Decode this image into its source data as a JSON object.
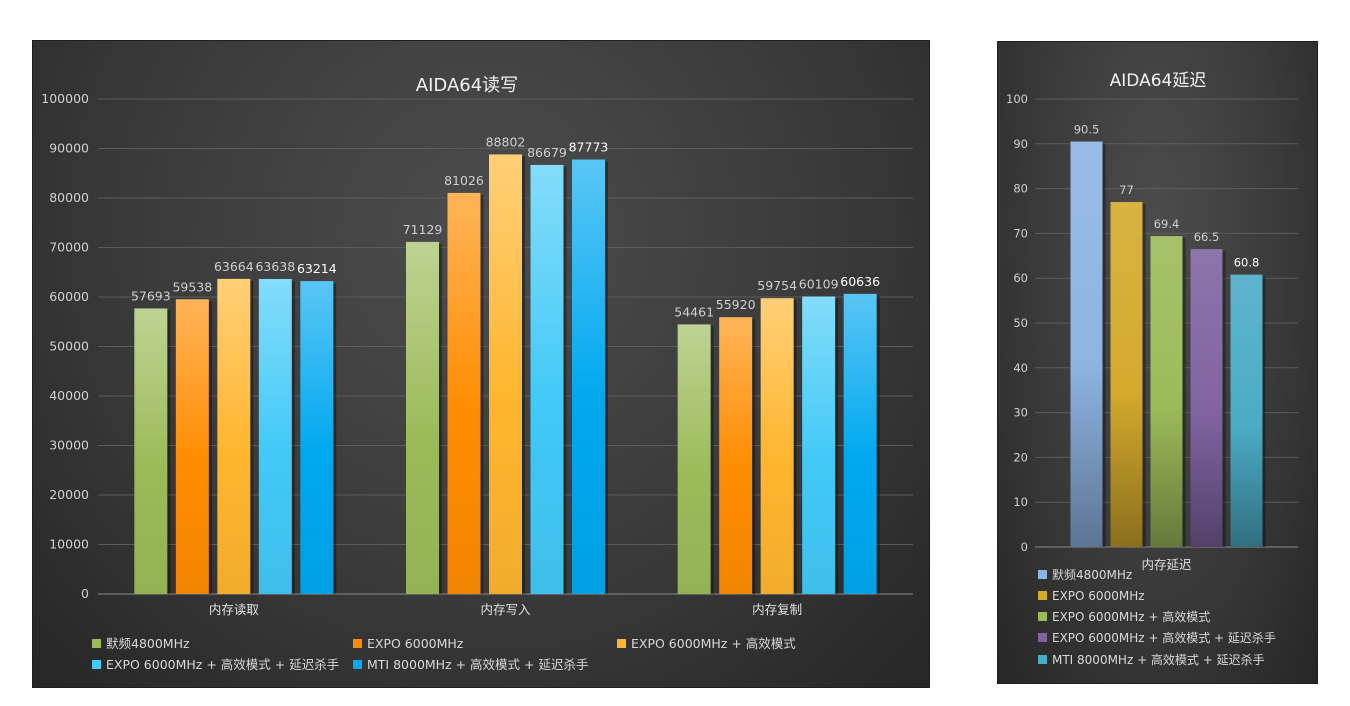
{
  "charts": [
    {
      "chart_data": {
        "type": "bar",
        "title": "AIDA64读写",
        "categories": [
          "内存读取",
          "内存写入",
          "内存复制"
        ],
        "ylim": [
          0,
          100000
        ],
        "yticks": [
          0,
          10000,
          20000,
          30000,
          40000,
          50000,
          60000,
          70000,
          80000,
          90000,
          100000
        ],
        "grid": true,
        "legend_position": "bottom",
        "series": [
          {
            "name": "默频4800MHz",
            "color": "#9bbb59",
            "values": [
              57693,
              71129,
              54461
            ]
          },
          {
            "name": "EXPO 6000MHz",
            "color": "#ff8c00",
            "values": [
              59538,
              81026,
              55920
            ]
          },
          {
            "name": "EXPO 6000MHz + 高效模式",
            "color": "#ffb52e",
            "values": [
              63664,
              88802,
              59754
            ]
          },
          {
            "name": "EXPO 6000MHz + 高效模式 + 延迟杀手",
            "color": "#41c9f7",
            "values": [
              63638,
              86679,
              60109
            ]
          },
          {
            "name": "MTI 8000MHz + 高效模式 + 延迟杀手",
            "color": "#00a8f0",
            "values": [
              63214,
              87773,
              60636
            ]
          }
        ]
      }
    },
    {
      "chart_data": {
        "type": "bar",
        "title": "AIDA64延迟",
        "categories": [
          "内存延迟"
        ],
        "ylim": [
          0,
          100
        ],
        "yticks": [
          0,
          10,
          20,
          30,
          40,
          50,
          60,
          70,
          80,
          90,
          100
        ],
        "grid": true,
        "legend_position": "bottom",
        "series": [
          {
            "name": "默频4800MHz",
            "color": "#8eb4e3",
            "values": [
              90.5
            ]
          },
          {
            "name": "EXPO 6000MHz",
            "color": "#d4aa2c",
            "values": [
              77
            ]
          },
          {
            "name": "EXPO 6000MHz + 高效模式",
            "color": "#9bbb59",
            "values": [
              69.4
            ]
          },
          {
            "name": "EXPO 6000MHz + 高效模式 + 延迟杀手",
            "color": "#8064a2",
            "values": [
              66.5
            ]
          },
          {
            "name": "MTI 8000MHz + 高效模式 + 延迟杀手",
            "color": "#4bacc6",
            "values": [
              60.8
            ]
          }
        ]
      }
    }
  ]
}
